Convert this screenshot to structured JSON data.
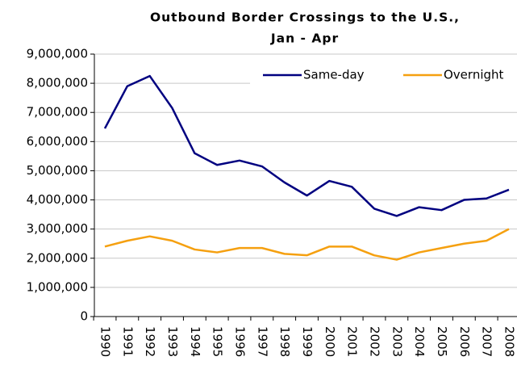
{
  "chart_data": {
    "type": "line",
    "title": [
      "Outbound Border Crossings to the U.S.,",
      "Jan - Apr"
    ],
    "categories": [
      "1990",
      "1991",
      "1992",
      "1993",
      "1994",
      "1995",
      "1996",
      "1997",
      "1998",
      "1999",
      "2000",
      "2001",
      "2002",
      "2003",
      "2004",
      "2005",
      "2006",
      "2007",
      "2008"
    ],
    "series": [
      {
        "name": "Same-day",
        "color": "#000080",
        "values": [
          6450000,
          7900000,
          8250000,
          7150000,
          5600000,
          5200000,
          5350000,
          5150000,
          4600000,
          4150000,
          4650000,
          4450000,
          3700000,
          3450000,
          3750000,
          3650000,
          4000000,
          4050000,
          4350000
        ]
      },
      {
        "name": "Overnight",
        "color": "#f5a010",
        "values": [
          2400000,
          2600000,
          2750000,
          2600000,
          2300000,
          2200000,
          2350000,
          2350000,
          2150000,
          2100000,
          2400000,
          2400000,
          2100000,
          1950000,
          2200000,
          2350000,
          2500000,
          2600000,
          3000000
        ]
      }
    ],
    "ylim": [
      0,
      9000000
    ],
    "yticks": [
      0,
      {
        "value": 1000000,
        "label": "1,000,000"
      },
      {
        "value": 2000000,
        "label": "2,000,000"
      },
      {
        "value": 3000000,
        "label": "3,000,000"
      },
      {
        "value": 4000000,
        "label": "4,000,000"
      },
      {
        "value": 5000000,
        "label": "5,000,000"
      },
      {
        "value": 6000000,
        "label": "6,000,000"
      },
      {
        "value": 7000000,
        "label": "7,000,000"
      },
      {
        "value": 8000000,
        "label": "8,000,000"
      },
      {
        "value": 9000000,
        "label": "9,000,000"
      }
    ],
    "grid": true,
    "legend": "top-right"
  }
}
